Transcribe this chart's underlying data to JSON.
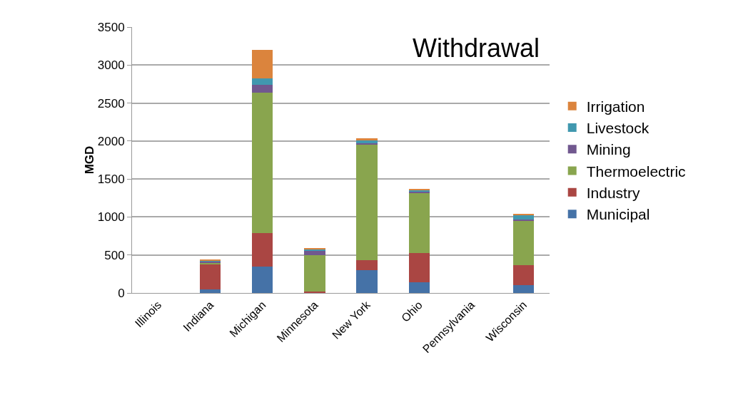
{
  "chart_data": {
    "type": "bar",
    "title": "Withdrawal",
    "ylabel": "MGD",
    "categories": [
      "Illinois",
      "Indiana",
      "Michigan",
      "Minnesota",
      "New York",
      "Ohio",
      "Pennsylvania",
      "Wisconsin"
    ],
    "stacked": true,
    "series": [
      {
        "name": "Municipal",
        "color": "#4572a7",
        "values": [
          null,
          50,
          350,
          null,
          300,
          140,
          null,
          100
        ]
      },
      {
        "name": "Industry",
        "color": "#aa4643",
        "values": [
          null,
          330,
          440,
          20,
          130,
          390,
          null,
          270
        ]
      },
      {
        "name": "Thermoelectric",
        "color": "#89a54e",
        "values": [
          null,
          20,
          1850,
          480,
          1530,
          780,
          null,
          580
        ]
      },
      {
        "name": "Mining",
        "color": "#71588f",
        "values": [
          null,
          10,
          100,
          60,
          10,
          20,
          null,
          20
        ]
      },
      {
        "name": "Livestock",
        "color": "#4198af",
        "values": [
          null,
          20,
          80,
          10,
          40,
          20,
          null,
          60
        ]
      },
      {
        "name": "Irrigation",
        "color": "#db843d",
        "values": [
          null,
          10,
          380,
          20,
          30,
          20,
          null,
          10
        ]
      }
    ],
    "ylim": [
      0,
      3500
    ],
    "yticks": [
      0,
      500,
      1000,
      1500,
      2000,
      2500,
      3000,
      3500
    ],
    "grid": "y",
    "legend": "right"
  }
}
